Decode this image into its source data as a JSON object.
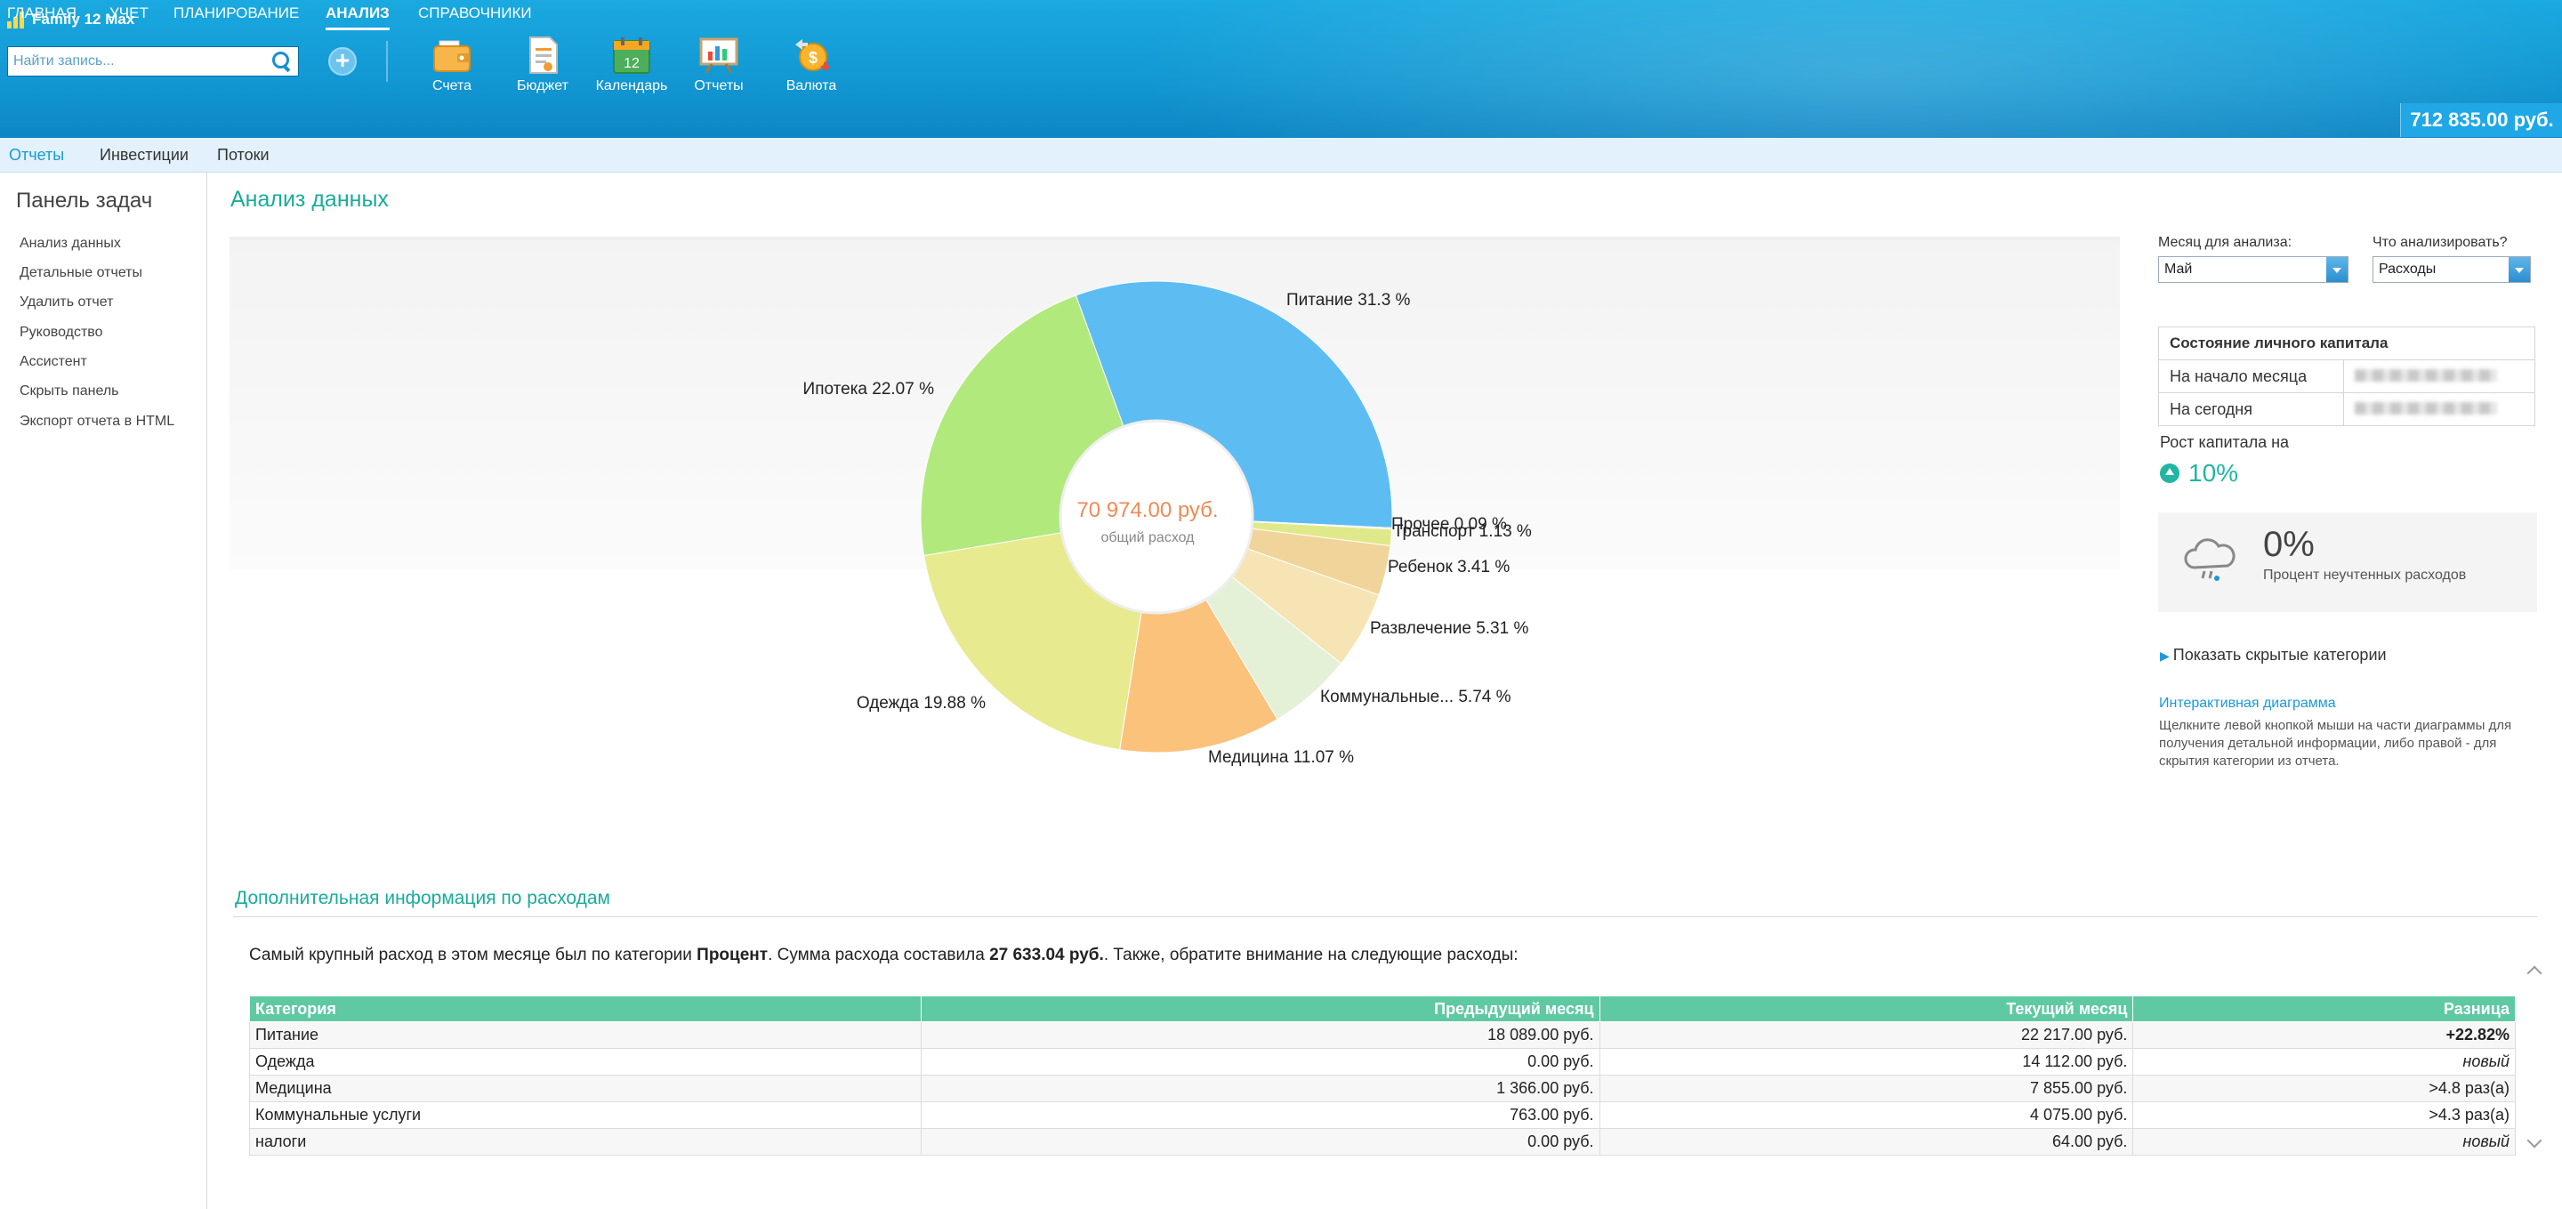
{
  "app": {
    "title": "Family 12 Max"
  },
  "search": {
    "placeholder": "Найти запись..."
  },
  "toolbar": {
    "add_icon": "plus-circle-icon",
    "tools": [
      {
        "label": "Счета",
        "icon": "wallet-icon"
      },
      {
        "label": "Бюджет",
        "icon": "budget-document-icon"
      },
      {
        "label": "Календарь",
        "icon": "calendar-icon",
        "day": "12"
      },
      {
        "label": "Отчеты",
        "icon": "report-board-icon"
      },
      {
        "label": "Валюта",
        "icon": "currency-coin-icon",
        "symbol": "$"
      }
    ]
  },
  "nav": {
    "items": [
      {
        "label": "ГЛАВНАЯ"
      },
      {
        "label": "УЧЕТ"
      },
      {
        "label": "ПЛАНИРОВАНИЕ"
      },
      {
        "label": "АНАЛИЗ",
        "active": true
      },
      {
        "label": "СПРАВОЧНИКИ"
      }
    ],
    "balance": "712 835.00 руб."
  },
  "subnav": {
    "items": [
      {
        "label": "Отчеты",
        "active": true
      },
      {
        "label": "Инвестиции"
      },
      {
        "label": "Потоки"
      }
    ]
  },
  "sidebar": {
    "title": "Панель задач",
    "items": [
      {
        "label": "Анализ данных"
      },
      {
        "label": "Детальные отчеты"
      },
      {
        "label": "Удалить отчет"
      },
      {
        "label": "Руководство"
      },
      {
        "label": "Ассистент"
      },
      {
        "label": "Скрыть панель"
      },
      {
        "label": "Экспорт отчета в HTML"
      }
    ]
  },
  "main": {
    "title": "Анализ данных"
  },
  "chart_data": {
    "type": "pie",
    "donut": true,
    "center_value": "70 974.00 руб.",
    "center_label": "общий расход",
    "slices": [
      {
        "label": "Питание 31.3 %",
        "value": 31.3,
        "color": "#5dbdf3"
      },
      {
        "label": "Прочее 0.09 %",
        "value": 0.09,
        "color": "#f3c4a8"
      },
      {
        "label": "Транспорт 1.13 %",
        "value": 1.13,
        "color": "#dfe98a"
      },
      {
        "label": "Ребенок 3.41 %",
        "value": 3.41,
        "color": "#f0d49a"
      },
      {
        "label": "Развлечение 5.31 %",
        "value": 5.31,
        "color": "#f7e4b4"
      },
      {
        "label": "Коммунальные... 5.74 %",
        "value": 5.74,
        "color": "#e4f1d7"
      },
      {
        "label": "Медицина 11.07 %",
        "value": 11.07,
        "color": "#fbc27c"
      },
      {
        "label": "Одежда 19.88 %",
        "value": 19.88,
        "color": "#e7ea8e"
      },
      {
        "label": "Ипотека 22.07 %",
        "value": 22.07,
        "color": "#b1e97d"
      }
    ]
  },
  "right_panel": {
    "month_label": "Месяц для анализа:",
    "month_value": "Май",
    "analyze_label": "Что анализировать?",
    "analyze_value": "Расходы",
    "capital_title": "Состояние личного капитала",
    "capital_rows": [
      {
        "label": "На начало месяца"
      },
      {
        "label": "На сегодня"
      }
    ],
    "growth_label": "Рост капитала на",
    "growth_value": "10%",
    "unknown_value": "0%",
    "unknown_label": "Процент неучтенных расходов",
    "show_hidden": "Показать скрытые категории",
    "interactive_title": "Интерактивная диаграмма",
    "interactive_text": "Щелкните левой кнопкой мыши на части диаграммы для получения детальной информации, либо правой - для скрытия категории из отчета."
  },
  "additional": {
    "title": "Дополнительная информация по расходам",
    "summary_pre": "Самый крупный расход в этом месяце был по категории ",
    "summary_category": "Процент",
    "summary_mid": ". Сумма расхода составила ",
    "summary_amount": "27 633.04 руб.",
    "summary_post": ". Также, обратите внимание на следующие расходы:",
    "columns": [
      "Категория",
      "Предыдущий месяц",
      "Текущий месяц",
      "Разница"
    ],
    "rows": [
      {
        "category": "Питание",
        "prev": "18 089.00 руб.",
        "cur": "22 217.00 руб.",
        "diff": "+22.82%",
        "kind": "up"
      },
      {
        "category": "Одежда",
        "prev": "0.00 руб.",
        "cur": "14 112.00 руб.",
        "diff": "новый",
        "kind": "new"
      },
      {
        "category": "Медицина",
        "prev": "1 366.00 руб.",
        "cur": "7 855.00 руб.",
        "diff": ">4.8 раз(а)",
        "kind": "times"
      },
      {
        "category": "Коммунальные услуги",
        "prev": "763.00 руб.",
        "cur": "4 075.00 руб.",
        "diff": ">4.3 раз(а)",
        "kind": "times"
      },
      {
        "category": "налоги",
        "prev": "0.00 руб.",
        "cur": "64.00 руб.",
        "diff": "новый",
        "kind": "new"
      }
    ]
  }
}
